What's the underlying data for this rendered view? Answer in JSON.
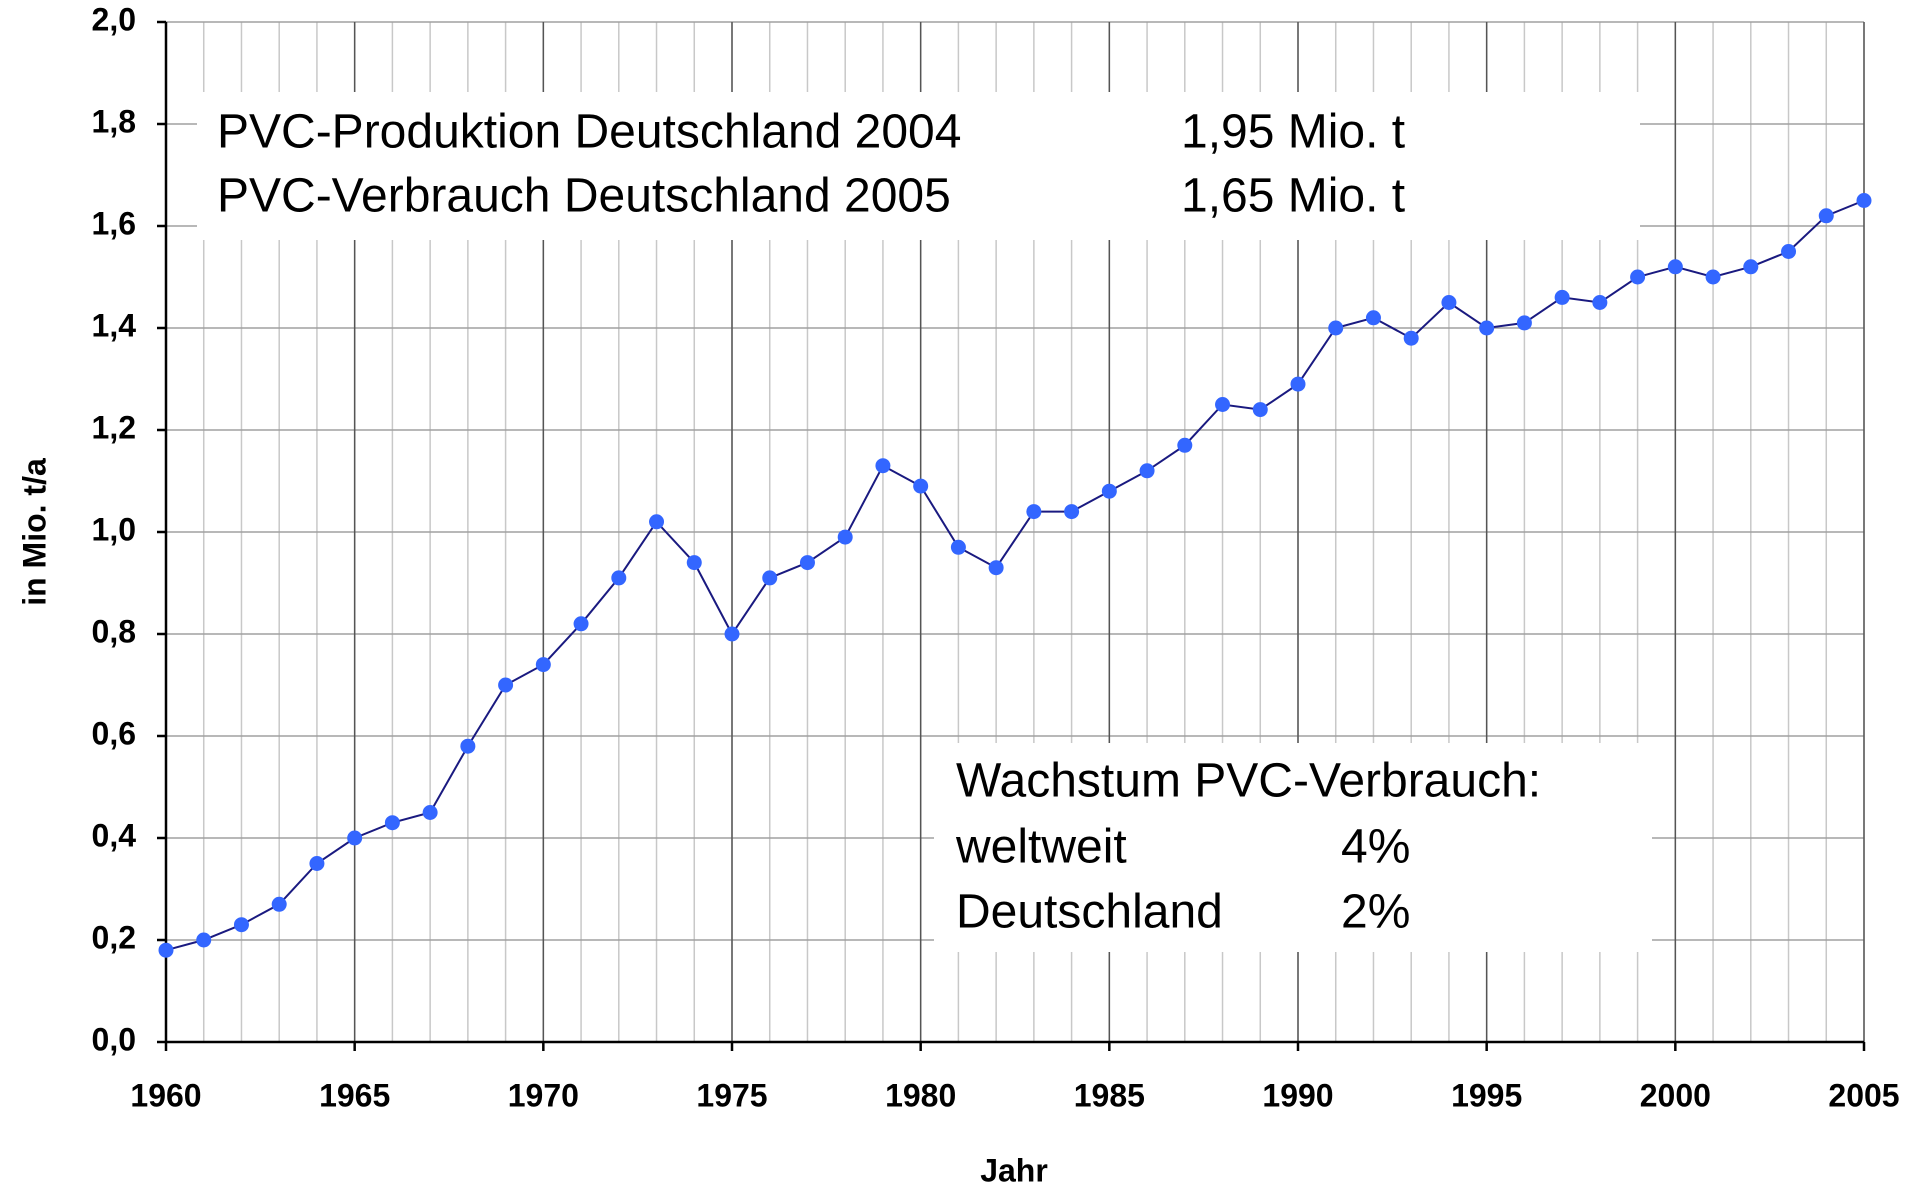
{
  "chart_data": {
    "type": "line",
    "x_label": "Jahr",
    "y_label": "in Mio. t/a",
    "x": [
      1960,
      1961,
      1962,
      1963,
      1964,
      1965,
      1966,
      1967,
      1968,
      1969,
      1970,
      1971,
      1972,
      1973,
      1974,
      1975,
      1976,
      1977,
      1978,
      1979,
      1980,
      1981,
      1982,
      1983,
      1984,
      1985,
      1986,
      1987,
      1988,
      1989,
      1990,
      1991,
      1992,
      1993,
      1994,
      1995,
      1996,
      1997,
      1998,
      1999,
      2000,
      2001,
      2002,
      2003,
      2004,
      2005
    ],
    "series": [
      {
        "color": "#1a1a80",
        "marker_color": "#3366ff",
        "values": [
          0.18,
          0.2,
          0.23,
          0.27,
          0.35,
          0.4,
          0.43,
          0.45,
          0.58,
          0.7,
          0.74,
          0.82,
          0.91,
          1.02,
          0.94,
          0.8,
          0.91,
          0.94,
          0.99,
          1.13,
          1.09,
          0.97,
          0.93,
          1.04,
          1.04,
          1.08,
          1.12,
          1.17,
          1.25,
          1.24,
          1.29,
          1.4,
          1.42,
          1.38,
          1.45,
          1.4,
          1.41,
          1.46,
          1.45,
          1.5,
          1.52,
          1.5,
          1.52,
          1.55,
          1.62,
          1.65
        ]
      }
    ],
    "xlim": [
      1960,
      2005
    ],
    "xticks": [
      1960,
      1965,
      1970,
      1975,
      1980,
      1985,
      1990,
      1995,
      2000,
      2005
    ],
    "ylim": [
      0,
      2
    ],
    "yticks": [
      {
        "value": 0,
        "label": "0,0"
      },
      {
        "value": 0.2,
        "label": "0,2"
      },
      {
        "value": 0.4,
        "label": "0,4"
      },
      {
        "value": 0.6,
        "label": "0,6"
      },
      {
        "value": 0.8,
        "label": "0,8"
      },
      {
        "value": 1,
        "label": "1,0"
      },
      {
        "value": 1.2,
        "label": "1,2"
      },
      {
        "value": 1.4,
        "label": "1,4"
      },
      {
        "value": 1.6,
        "label": "1,6"
      },
      {
        "value": 1.8,
        "label": "1,8"
      },
      {
        "value": 2,
        "label": "2,0"
      }
    ],
    "grid": true,
    "annotations": [
      {
        "rows": [
          [
            "PVC-Produktion Deutschland 2004",
            "1,95 Mio. t"
          ],
          [
            "PVC-Verbrauch Deutschland 2005",
            "1,65 Mio. t"
          ]
        ]
      },
      {
        "title": "Wachstum PVC-Verbrauch:",
        "rows": [
          [
            "weltweit",
            "4%"
          ],
          [
            "Deutschland",
            "2%"
          ]
        ]
      }
    ]
  }
}
